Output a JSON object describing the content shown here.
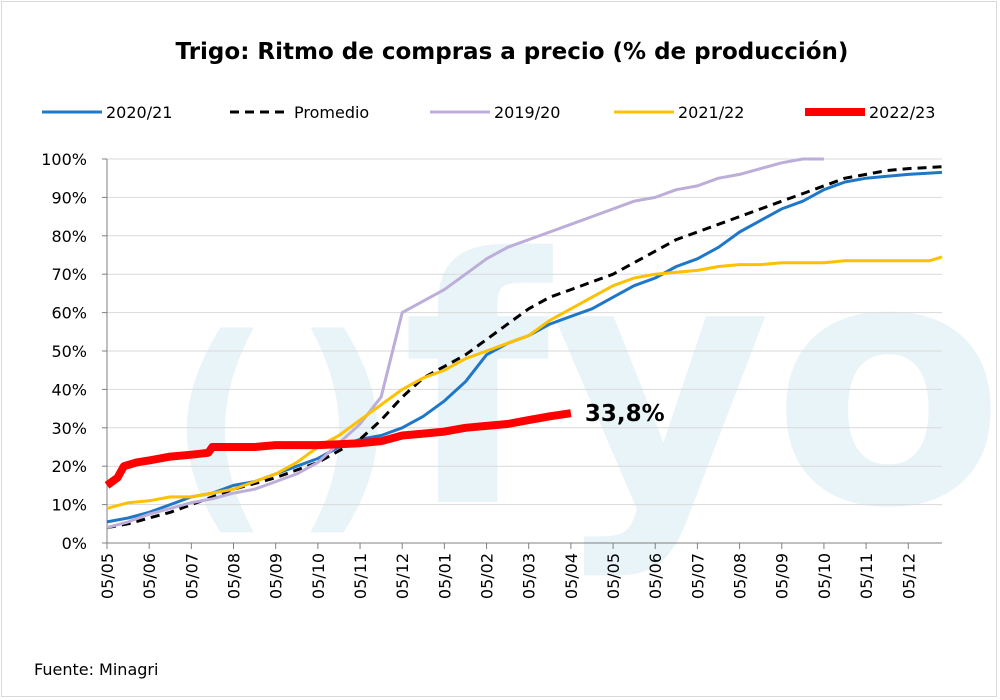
{
  "chart_data": {
    "type": "line",
    "title": "Trigo: Ritmo de compras a precio (% de producción)",
    "x_tick_labels": [
      "05/05",
      "05/06",
      "05/07",
      "05/08",
      "05/09",
      "05/10",
      "05/11",
      "05/12",
      "05/01",
      "05/02",
      "05/03",
      "05/04",
      "05/05",
      "05/06",
      "05/07",
      "05/08",
      "05/09",
      "05/10",
      "05/11",
      "05/12"
    ],
    "y_tick_labels": [
      "0%",
      "10%",
      "20%",
      "30%",
      "40%",
      "50%",
      "60%",
      "70%",
      "80%",
      "90%",
      "100%"
    ],
    "ylim": [
      0,
      100
    ],
    "xlim": [
      0,
      19.8
    ],
    "grid": "horizontal",
    "legend_position": "top",
    "annotation": "33,8%",
    "source": "Fuente: Minagri",
    "watermark": "fyo",
    "series": [
      {
        "name": "2020/21",
        "color": "#1f77c8",
        "dash": "",
        "width": 3,
        "points": [
          [
            0,
            5.5
          ],
          [
            0.5,
            6.5
          ],
          [
            1,
            8
          ],
          [
            1.5,
            10
          ],
          [
            2,
            12
          ],
          [
            2.5,
            13
          ],
          [
            3,
            15
          ],
          [
            3.5,
            16
          ],
          [
            4,
            18
          ],
          [
            4.5,
            20
          ],
          [
            5,
            22
          ],
          [
            5.5,
            25
          ],
          [
            6,
            27
          ],
          [
            6.5,
            28
          ],
          [
            7,
            30
          ],
          [
            7.5,
            33
          ],
          [
            8,
            37
          ],
          [
            8.5,
            42
          ],
          [
            9,
            49
          ],
          [
            9.5,
            52
          ],
          [
            10,
            54
          ],
          [
            10.5,
            57
          ],
          [
            11,
            59
          ],
          [
            11.5,
            61
          ],
          [
            12,
            64
          ],
          [
            12.5,
            67
          ],
          [
            13,
            69
          ],
          [
            13.5,
            72
          ],
          [
            14,
            74
          ],
          [
            14.5,
            77
          ],
          [
            15,
            81
          ],
          [
            15.5,
            84
          ],
          [
            16,
            87
          ],
          [
            16.5,
            89
          ],
          [
            17,
            92
          ],
          [
            17.5,
            94
          ],
          [
            18,
            95
          ],
          [
            18.5,
            95.5
          ],
          [
            19,
            96
          ],
          [
            19.8,
            96.5
          ]
        ]
      },
      {
        "name": "Promedio",
        "color": "#000000",
        "dash": "9,6",
        "width": 3,
        "points": [
          [
            0,
            4
          ],
          [
            0.5,
            5
          ],
          [
            1,
            6.5
          ],
          [
            1.5,
            8
          ],
          [
            2,
            10
          ],
          [
            2.5,
            12
          ],
          [
            3,
            14
          ],
          [
            3.5,
            15.5
          ],
          [
            4,
            17
          ],
          [
            4.5,
            19
          ],
          [
            5,
            21
          ],
          [
            5.5,
            24
          ],
          [
            6,
            27
          ],
          [
            6.5,
            32
          ],
          [
            7,
            38
          ],
          [
            7.5,
            43
          ],
          [
            8,
            46
          ],
          [
            8.5,
            49
          ],
          [
            9,
            53
          ],
          [
            9.5,
            57
          ],
          [
            10,
            61
          ],
          [
            10.5,
            64
          ],
          [
            11,
            66
          ],
          [
            11.5,
            68
          ],
          [
            12,
            70
          ],
          [
            12.5,
            73
          ],
          [
            13,
            76
          ],
          [
            13.5,
            79
          ],
          [
            14,
            81
          ],
          [
            14.5,
            83
          ],
          [
            15,
            85
          ],
          [
            15.5,
            87
          ],
          [
            16,
            89
          ],
          [
            16.5,
            91
          ],
          [
            17,
            93
          ],
          [
            17.5,
            95
          ],
          [
            18,
            96
          ],
          [
            18.5,
            97
          ],
          [
            19,
            97.5
          ],
          [
            19.8,
            98
          ]
        ]
      },
      {
        "name": "2019/20",
        "color": "#bcaed8",
        "dash": "",
        "width": 3,
        "points": [
          [
            0,
            4
          ],
          [
            0.5,
            5.5
          ],
          [
            1,
            7.5
          ],
          [
            1.5,
            9
          ],
          [
            2,
            10.5
          ],
          [
            2.5,
            11.5
          ],
          [
            3,
            13
          ],
          [
            3.5,
            14
          ],
          [
            4,
            16
          ],
          [
            4.5,
            18
          ],
          [
            5,
            21
          ],
          [
            5.5,
            26
          ],
          [
            6,
            31
          ],
          [
            6.5,
            38
          ],
          [
            7,
            60
          ],
          [
            7.5,
            63
          ],
          [
            8,
            66
          ],
          [
            8.5,
            70
          ],
          [
            9,
            74
          ],
          [
            9.5,
            77
          ],
          [
            10,
            79
          ],
          [
            10.5,
            81
          ],
          [
            11,
            83
          ],
          [
            11.5,
            85
          ],
          [
            12,
            87
          ],
          [
            12.5,
            89
          ],
          [
            13,
            90
          ],
          [
            13.5,
            92
          ],
          [
            14,
            93
          ],
          [
            14.5,
            95
          ],
          [
            15,
            96
          ],
          [
            15.5,
            97.5
          ],
          [
            16,
            99
          ],
          [
            16.5,
            100
          ],
          [
            17,
            100.5
          ]
        ]
      },
      {
        "name": "2021/22",
        "color": "#ffc000",
        "dash": "",
        "width": 3,
        "points": [
          [
            0,
            9
          ],
          [
            0.5,
            10.5
          ],
          [
            1,
            11
          ],
          [
            1.5,
            12
          ],
          [
            2,
            12
          ],
          [
            2.5,
            13
          ],
          [
            3,
            14
          ],
          [
            3.5,
            16
          ],
          [
            4,
            18
          ],
          [
            4.5,
            21
          ],
          [
            5,
            25
          ],
          [
            5.5,
            28
          ],
          [
            6,
            32
          ],
          [
            6.5,
            36
          ],
          [
            7,
            40
          ],
          [
            7.5,
            43
          ],
          [
            8,
            45
          ],
          [
            8.5,
            48
          ],
          [
            9,
            50
          ],
          [
            9.5,
            52
          ],
          [
            10,
            54
          ],
          [
            10.5,
            58
          ],
          [
            11,
            61
          ],
          [
            11.5,
            64
          ],
          [
            12,
            67
          ],
          [
            12.5,
            69
          ],
          [
            13,
            70
          ],
          [
            13.5,
            70.5
          ],
          [
            14,
            71
          ],
          [
            14.5,
            72
          ],
          [
            15,
            72.5
          ],
          [
            15.5,
            72.5
          ],
          [
            16,
            73
          ],
          [
            16.5,
            73
          ],
          [
            17,
            73
          ],
          [
            17.5,
            73.5
          ],
          [
            18,
            73.5
          ],
          [
            18.5,
            73.5
          ],
          [
            19,
            73.5
          ],
          [
            19.5,
            73.5
          ],
          [
            19.8,
            74.5
          ]
        ]
      },
      {
        "name": "2022/23",
        "color": "#ff0000",
        "dash": "",
        "width": 8,
        "points": [
          [
            0,
            15
          ],
          [
            0.25,
            17
          ],
          [
            0.4,
            20
          ],
          [
            0.7,
            21
          ],
          [
            1,
            21.5
          ],
          [
            1.5,
            22.5
          ],
          [
            2,
            23
          ],
          [
            2.4,
            23.5
          ],
          [
            2.5,
            25
          ],
          [
            3,
            25
          ],
          [
            3.5,
            25
          ],
          [
            4,
            25.5
          ],
          [
            4.5,
            25.5
          ],
          [
            5,
            25.5
          ],
          [
            5.5,
            25.7
          ],
          [
            6,
            26
          ],
          [
            6.5,
            26.5
          ],
          [
            7,
            28
          ],
          [
            7.5,
            28.5
          ],
          [
            8,
            29
          ],
          [
            8.5,
            30
          ],
          [
            9,
            30.5
          ],
          [
            9.5,
            31
          ],
          [
            10,
            32
          ],
          [
            10.5,
            33
          ],
          [
            11,
            33.8
          ]
        ]
      }
    ]
  }
}
